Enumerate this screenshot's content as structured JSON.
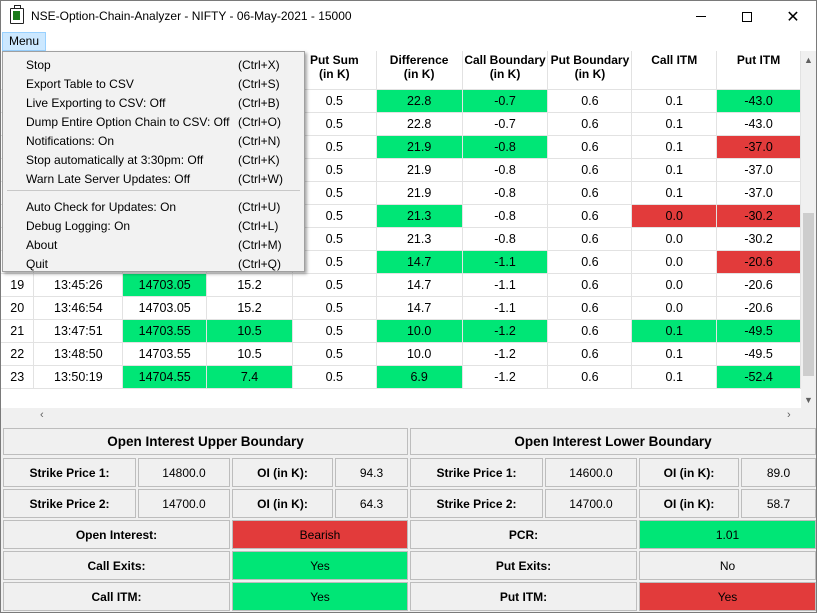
{
  "window": {
    "title": "NSE-Option-Chain-Analyzer - NIFTY - 06-May-2021 - 15000",
    "menu_label": "Menu",
    "minimize_glyph": "",
    "maximize_glyph": "",
    "close_glyph": "✕"
  },
  "menu": {
    "items": [
      {
        "label": "Stop",
        "shortcut": "(Ctrl+X)"
      },
      {
        "label": "Export Table to CSV",
        "shortcut": "(Ctrl+S)"
      },
      {
        "label": "Live Exporting to CSV: Off",
        "shortcut": "(Ctrl+B)"
      },
      {
        "label": "Dump Entire Option Chain to CSV: Off",
        "shortcut": "(Ctrl+O)"
      },
      {
        "label": "Notifications: On",
        "shortcut": "(Ctrl+N)"
      },
      {
        "label": "Stop automatically at 3:30pm: Off",
        "shortcut": "(Ctrl+K)"
      },
      {
        "label": "Warn Late Server Updates: Off",
        "shortcut": "(Ctrl+W)"
      },
      {
        "label": "Auto Check for Updates: On",
        "shortcut": "(Ctrl+U)"
      },
      {
        "label": "Debug Logging: On",
        "shortcut": "(Ctrl+L)"
      },
      {
        "label": "About",
        "shortcut": "(Ctrl+M)"
      },
      {
        "label": "Quit",
        "shortcut": "(Ctrl+Q)"
      }
    ]
  },
  "table": {
    "headers": [
      {
        "line1": "Put Sum",
        "line2": "(in K)"
      },
      {
        "line1": "Difference",
        "line2": "(in K)"
      },
      {
        "line1": "Call Boundary",
        "line2": "(in K)"
      },
      {
        "line1": "Put Boundary",
        "line2": "(in K)"
      },
      {
        "line1": "Call ITM",
        "line2": ""
      },
      {
        "line1": "Put ITM",
        "line2": ""
      }
    ],
    "rows": [
      {
        "c": [
          "",
          "",
          "",
          "",
          "0.5",
          "22.8",
          "-0.7",
          "0.6",
          "0.1",
          "-43.0"
        ],
        "hl": [
          "",
          "",
          "",
          "",
          "",
          "g",
          "g",
          "",
          "",
          "g"
        ]
      },
      {
        "c": [
          "",
          "",
          "",
          "",
          "0.5",
          "22.8",
          "-0.7",
          "0.6",
          "0.1",
          "-43.0"
        ],
        "hl": [
          "",
          "",
          "",
          "",
          "",
          "",
          "",
          "",
          "",
          ""
        ]
      },
      {
        "c": [
          "",
          "",
          "",
          "",
          "0.5",
          "21.9",
          "-0.8",
          "0.6",
          "0.1",
          "-37.0"
        ],
        "hl": [
          "",
          "",
          "",
          "",
          "",
          "g",
          "g",
          "",
          "",
          "r"
        ]
      },
      {
        "c": [
          "",
          "",
          "",
          "",
          "0.5",
          "21.9",
          "-0.8",
          "0.6",
          "0.1",
          "-37.0"
        ],
        "hl": [
          "",
          "",
          "",
          "",
          "",
          "",
          "",
          "",
          "",
          ""
        ]
      },
      {
        "c": [
          "",
          "",
          "",
          "",
          "0.5",
          "21.9",
          "-0.8",
          "0.6",
          "0.1",
          "-37.0"
        ],
        "hl": [
          "",
          "",
          "",
          "",
          "",
          "",
          "",
          "",
          "",
          ""
        ]
      },
      {
        "c": [
          "",
          "",
          "",
          "",
          "0.5",
          "21.3",
          "-0.8",
          "0.6",
          "0.0",
          "-30.2"
        ],
        "hl": [
          "",
          "",
          "",
          "",
          "",
          "g",
          "",
          "",
          "r",
          "r"
        ]
      },
      {
        "c": [
          "",
          "",
          "",
          "",
          "0.5",
          "21.3",
          "-0.8",
          "0.6",
          "0.0",
          "-30.2"
        ],
        "hl": [
          "",
          "",
          "",
          "",
          "",
          "",
          "",
          "",
          "",
          ""
        ]
      },
      {
        "c": [
          "",
          "",
          "",
          "",
          "0.5",
          "14.7",
          "-1.1",
          "0.6",
          "0.0",
          "-20.6"
        ],
        "hl": [
          "",
          "",
          "",
          "",
          "",
          "g",
          "g",
          "",
          "",
          "r"
        ]
      },
      {
        "c": [
          "19",
          "13:45:26",
          "14703.05",
          "15.2",
          "0.5",
          "14.7",
          "-1.1",
          "0.6",
          "0.0",
          "-20.6"
        ],
        "hl": [
          "",
          "",
          "g",
          "",
          "",
          "",
          "",
          "",
          "",
          ""
        ]
      },
      {
        "c": [
          "20",
          "13:46:54",
          "14703.05",
          "15.2",
          "0.5",
          "14.7",
          "-1.1",
          "0.6",
          "0.0",
          "-20.6"
        ],
        "hl": [
          "",
          "",
          "",
          "",
          "",
          "",
          "",
          "",
          "",
          ""
        ]
      },
      {
        "c": [
          "21",
          "13:47:51",
          "14703.55",
          "10.5",
          "0.5",
          "10.0",
          "-1.2",
          "0.6",
          "0.1",
          "-49.5"
        ],
        "hl": [
          "",
          "",
          "g",
          "g",
          "",
          "g",
          "g",
          "",
          "g",
          "g"
        ]
      },
      {
        "c": [
          "22",
          "13:48:50",
          "14703.55",
          "10.5",
          "0.5",
          "10.0",
          "-1.2",
          "0.6",
          "0.1",
          "-49.5"
        ],
        "hl": [
          "",
          "",
          "",
          "",
          "",
          "",
          "",
          "",
          "",
          ""
        ]
      },
      {
        "c": [
          "23",
          "13:50:19",
          "14704.55",
          "7.4",
          "0.5",
          "6.9",
          "-1.2",
          "0.6",
          "0.1",
          "-52.4"
        ],
        "hl": [
          "",
          "",
          "g",
          "g",
          "",
          "g",
          "",
          "",
          "",
          "g"
        ]
      }
    ]
  },
  "upper": {
    "title": "Open Interest Upper Boundary",
    "strike1_label": "Strike Price 1:",
    "strike1_value": "14800.0",
    "oi1_label": "OI (in K):",
    "oi1_value": "94.3",
    "strike2_label": "Strike Price 2:",
    "strike2_value": "14700.0",
    "oi2_label": "OI (in K):",
    "oi2_value": "64.3"
  },
  "lower": {
    "title": "Open Interest Lower Boundary",
    "strike1_label": "Strike Price 1:",
    "strike1_value": "14600.0",
    "oi1_label": "OI (in K):",
    "oi1_value": "89.0",
    "strike2_label": "Strike Price 2:",
    "strike2_value": "14700.0",
    "oi2_label": "OI (in K):",
    "oi2_value": "58.7"
  },
  "summary": {
    "open_interest_label": "Open Interest:",
    "open_interest_value": "Bearish",
    "pcr_label": "PCR:",
    "pcr_value": "1.01",
    "call_exits_label": "Call Exits:",
    "call_exits_value": "Yes",
    "put_exits_label": "Put Exits:",
    "put_exits_value": "No",
    "call_itm_label": "Call ITM:",
    "call_itm_value": "Yes",
    "put_itm_label": "Put ITM:",
    "put_itm_value": "Yes"
  },
  "colors": {
    "green": "#00e676",
    "red": "#e23b3b",
    "menu_highlight": "#cce8ff"
  }
}
